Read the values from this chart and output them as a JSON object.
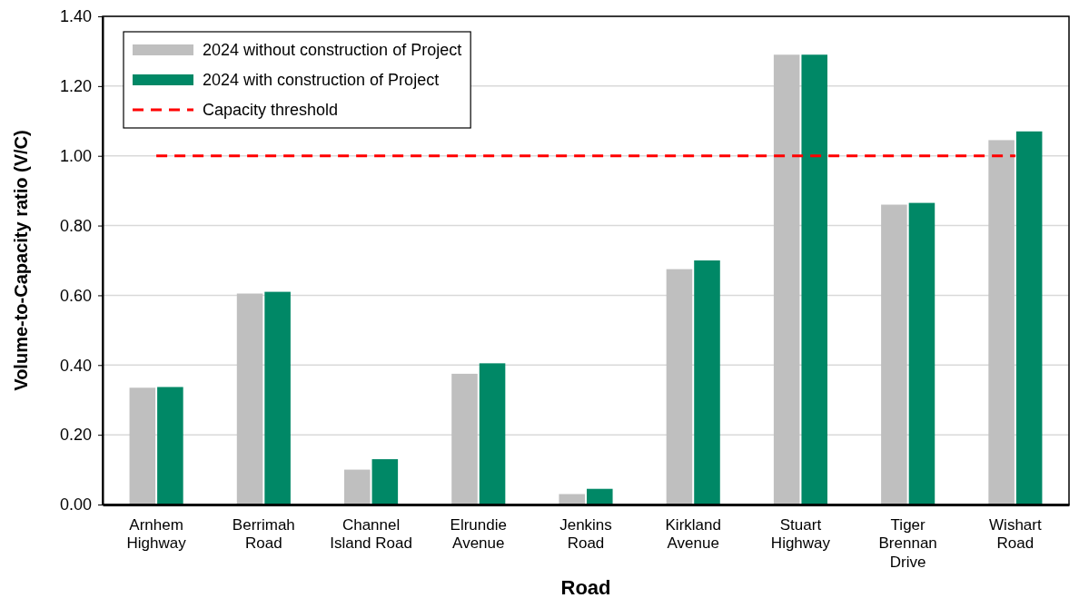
{
  "chart_data": {
    "type": "bar",
    "xlabel": "Road",
    "ylabel": "Volume-to-Capacity ratio (V/C)",
    "categories": [
      "Arnhem Highway",
      "Berrimah Road",
      "Channel Island Road",
      "Elrundie Avenue",
      "Jenkins Road",
      "Kirkland Avenue",
      "Stuart Highway",
      "Tiger Brennan Drive",
      "Wishart Road"
    ],
    "series": [
      {
        "name": "2024 without construction of Project",
        "color": "#bfbfbf",
        "values": [
          0.335,
          0.605,
          0.1,
          0.375,
          0.03,
          0.675,
          1.29,
          0.86,
          1.045
        ]
      },
      {
        "name": "2024 with construction of Project",
        "color": "#008866",
        "values": [
          0.337,
          0.61,
          0.13,
          0.405,
          0.045,
          0.7,
          1.29,
          0.865,
          1.07
        ]
      }
    ],
    "ylim": [
      0,
      1.4
    ],
    "yticks": [
      {
        "value": 0,
        "label": "0.00"
      },
      {
        "value": 0.2,
        "label": "0.20"
      },
      {
        "value": 0.4,
        "label": "0.40"
      },
      {
        "value": 0.6,
        "label": "0.60"
      },
      {
        "value": 0.8,
        "label": "0.80"
      },
      {
        "value": 1,
        "label": "1.00"
      },
      {
        "value": 1.2,
        "label": "1.20"
      },
      {
        "value": 1.4,
        "label": "1.40"
      }
    ],
    "grid": "y",
    "legend": "top left",
    "ref_lines": [
      {
        "axis": "y",
        "value": 1,
        "label": "Capacity threshold",
        "color": "#ff0000",
        "line_style": "dashed"
      }
    ]
  }
}
